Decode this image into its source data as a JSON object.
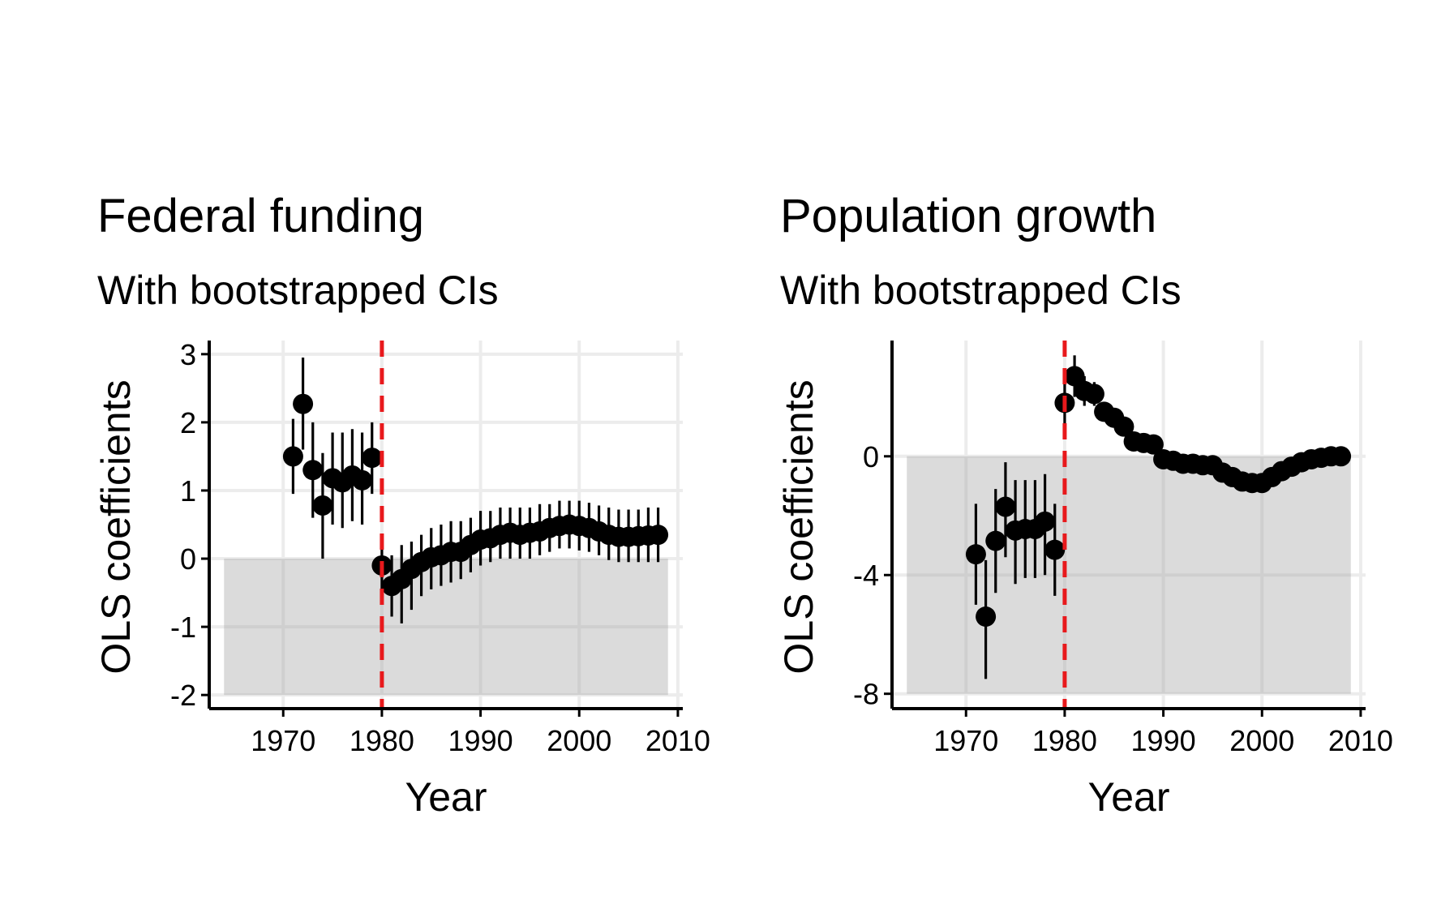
{
  "chart_data": [
    {
      "type": "scatter",
      "title": "Federal funding",
      "subtitle": "With bootstrapped CIs",
      "xlabel": "Year",
      "ylabel": "OLS coefficients",
      "xlim": [
        1962.5,
        2010.5
      ],
      "ylim": [
        -2.2,
        3.2
      ],
      "xticks": [
        "1970",
        "1980",
        "1990",
        "2000",
        "2010"
      ],
      "yticks": [
        "-2",
        "-1",
        "0",
        "1",
        "2",
        "3"
      ],
      "x_tick_values": [
        1970,
        1980,
        1990,
        2000,
        2010
      ],
      "y_tick_values": [
        -2,
        -1,
        0,
        1,
        2,
        3
      ],
      "shaded_region": {
        "x": [
          1964,
          2009
        ],
        "y": [
          -2,
          0
        ]
      },
      "vline": {
        "x": 1980,
        "color": "#e8191c",
        "style": "dashed"
      },
      "points": [
        {
          "x": 1971,
          "y": 1.5,
          "low": 0.95,
          "high": 2.05
        },
        {
          "x": 1972,
          "y": 2.27,
          "low": 1.6,
          "high": 2.95
        },
        {
          "x": 1973,
          "y": 1.3,
          "low": 0.6,
          "high": 2.0
        },
        {
          "x": 1974,
          "y": 0.78,
          "low": 0.0,
          "high": 1.55
        },
        {
          "x": 1975,
          "y": 1.18,
          "low": 0.5,
          "high": 1.85
        },
        {
          "x": 1976,
          "y": 1.12,
          "low": 0.45,
          "high": 1.85
        },
        {
          "x": 1977,
          "y": 1.22,
          "low": 0.55,
          "high": 1.9
        },
        {
          "x": 1978,
          "y": 1.15,
          "low": 0.5,
          "high": 1.85
        },
        {
          "x": 1979,
          "y": 1.48,
          "low": 0.95,
          "high": 2.0
        },
        {
          "x": 1980,
          "y": -0.1,
          "low": -0.55,
          "high": 0.35
        },
        {
          "x": 1981,
          "y": -0.4,
          "low": -0.85,
          "high": 0.05
        },
        {
          "x": 1982,
          "y": -0.3,
          "low": -0.95,
          "high": 0.2
        },
        {
          "x": 1983,
          "y": -0.15,
          "low": -0.75,
          "high": 0.25
        },
        {
          "x": 1984,
          "y": -0.05,
          "low": -0.55,
          "high": 0.35
        },
        {
          "x": 1985,
          "y": 0.02,
          "low": -0.45,
          "high": 0.45
        },
        {
          "x": 1986,
          "y": 0.05,
          "low": -0.4,
          "high": 0.5
        },
        {
          "x": 1987,
          "y": 0.1,
          "low": -0.35,
          "high": 0.55
        },
        {
          "x": 1988,
          "y": 0.1,
          "low": -0.3,
          "high": 0.55
        },
        {
          "x": 1989,
          "y": 0.2,
          "low": -0.2,
          "high": 0.6
        },
        {
          "x": 1990,
          "y": 0.28,
          "low": -0.1,
          "high": 0.7
        },
        {
          "x": 1991,
          "y": 0.3,
          "low": -0.05,
          "high": 0.7
        },
        {
          "x": 1992,
          "y": 0.35,
          "low": 0.0,
          "high": 0.75
        },
        {
          "x": 1993,
          "y": 0.38,
          "low": 0.0,
          "high": 0.75
        },
        {
          "x": 1994,
          "y": 0.35,
          "low": 0.0,
          "high": 0.75
        },
        {
          "x": 1995,
          "y": 0.38,
          "low": 0.0,
          "high": 0.75
        },
        {
          "x": 1996,
          "y": 0.4,
          "low": 0.05,
          "high": 0.8
        },
        {
          "x": 1997,
          "y": 0.45,
          "low": 0.1,
          "high": 0.8
        },
        {
          "x": 1998,
          "y": 0.48,
          "low": 0.15,
          "high": 0.85
        },
        {
          "x": 1999,
          "y": 0.5,
          "low": 0.15,
          "high": 0.85
        },
        {
          "x": 2000,
          "y": 0.48,
          "low": 0.12,
          "high": 0.85
        },
        {
          "x": 2001,
          "y": 0.45,
          "low": 0.1,
          "high": 0.82
        },
        {
          "x": 2002,
          "y": 0.4,
          "low": 0.05,
          "high": 0.78
        },
        {
          "x": 2003,
          "y": 0.35,
          "low": -0.02,
          "high": 0.75
        },
        {
          "x": 2004,
          "y": 0.32,
          "low": -0.05,
          "high": 0.72
        },
        {
          "x": 2005,
          "y": 0.32,
          "low": -0.05,
          "high": 0.72
        },
        {
          "x": 2006,
          "y": 0.33,
          "low": -0.05,
          "high": 0.72
        },
        {
          "x": 2007,
          "y": 0.34,
          "low": -0.05,
          "high": 0.75
        },
        {
          "x": 2008,
          "y": 0.35,
          "low": -0.05,
          "high": 0.75
        }
      ]
    },
    {
      "type": "scatter",
      "title": "Population growth",
      "subtitle": "With bootstrapped CIs",
      "xlabel": "Year",
      "ylabel": "OLS coefficients",
      "xlim": [
        1962.5,
        2010.5
      ],
      "ylim": [
        -8.5,
        3.9
      ],
      "xticks": [
        "1970",
        "1980",
        "1990",
        "2000",
        "2010"
      ],
      "yticks": [
        "-8",
        "-4",
        "0"
      ],
      "x_tick_values": [
        1970,
        1980,
        1990,
        2000,
        2010
      ],
      "y_tick_values": [
        -8,
        -4,
        0
      ],
      "shaded_region": {
        "x": [
          1964,
          2009
        ],
        "y": [
          -8,
          0
        ]
      },
      "vline": {
        "x": 1980,
        "color": "#e8191c",
        "style": "dashed"
      },
      "points": [
        {
          "x": 1971,
          "y": -3.3,
          "low": -5.0,
          "high": -1.6
        },
        {
          "x": 1972,
          "y": -5.4,
          "low": -7.5,
          "high": -3.5
        },
        {
          "x": 1973,
          "y": -2.85,
          "low": -4.6,
          "high": -1.1
        },
        {
          "x": 1974,
          "y": -1.7,
          "low": -3.4,
          "high": -0.2
        },
        {
          "x": 1975,
          "y": -2.5,
          "low": -4.3,
          "high": -0.8
        },
        {
          "x": 1976,
          "y": -2.45,
          "low": -4.1,
          "high": -0.8
        },
        {
          "x": 1977,
          "y": -2.45,
          "low": -4.1,
          "high": -0.8
        },
        {
          "x": 1978,
          "y": -2.2,
          "low": -4.0,
          "high": -0.6
        },
        {
          "x": 1979,
          "y": -3.15,
          "low": -4.7,
          "high": -1.6
        },
        {
          "x": 1980,
          "y": 1.8,
          "low": 1.0,
          "high": 2.6
        },
        {
          "x": 1981,
          "y": 2.7,
          "low": 2.0,
          "high": 3.4
        },
        {
          "x": 1982,
          "y": 2.2,
          "low": 1.7,
          "high": 2.7
        },
        {
          "x": 1983,
          "y": 2.1,
          "low": 1.7,
          "high": 2.5
        },
        {
          "x": 1984,
          "y": 1.5,
          "low": 1.2,
          "high": 1.8
        },
        {
          "x": 1985,
          "y": 1.3,
          "low": 1.0,
          "high": 1.6
        },
        {
          "x": 1986,
          "y": 1.0,
          "low": 0.7,
          "high": 1.3
        },
        {
          "x": 1987,
          "y": 0.5,
          "low": 0.2,
          "high": 0.8
        },
        {
          "x": 1988,
          "y": 0.45,
          "low": 0.2,
          "high": 0.7
        },
        {
          "x": 1989,
          "y": 0.4,
          "low": 0.15,
          "high": 0.65
        },
        {
          "x": 1990,
          "y": -0.1,
          "low": -0.35,
          "high": 0.15
        },
        {
          "x": 1991,
          "y": -0.15,
          "low": -0.4,
          "high": 0.1
        },
        {
          "x": 1992,
          "y": -0.25,
          "low": -0.5,
          "high": 0.0
        },
        {
          "x": 1993,
          "y": -0.25,
          "low": -0.5,
          "high": 0.0
        },
        {
          "x": 1994,
          "y": -0.3,
          "low": -0.55,
          "high": -0.05
        },
        {
          "x": 1995,
          "y": -0.3,
          "low": -0.55,
          "high": -0.05
        },
        {
          "x": 1996,
          "y": -0.55,
          "low": -0.8,
          "high": -0.3
        },
        {
          "x": 1997,
          "y": -0.7,
          "low": -0.95,
          "high": -0.45
        },
        {
          "x": 1998,
          "y": -0.85,
          "low": -1.1,
          "high": -0.6
        },
        {
          "x": 1999,
          "y": -0.9,
          "low": -1.15,
          "high": -0.65
        },
        {
          "x": 2000,
          "y": -0.9,
          "low": -1.15,
          "high": -0.65
        },
        {
          "x": 2001,
          "y": -0.7,
          "low": -0.95,
          "high": -0.45
        },
        {
          "x": 2002,
          "y": -0.5,
          "low": -0.75,
          "high": -0.25
        },
        {
          "x": 2003,
          "y": -0.35,
          "low": -0.6,
          "high": -0.1
        },
        {
          "x": 2004,
          "y": -0.2,
          "low": -0.45,
          "high": 0.05
        },
        {
          "x": 2005,
          "y": -0.1,
          "low": -0.35,
          "high": 0.15
        },
        {
          "x": 2006,
          "y": -0.05,
          "low": -0.3,
          "high": 0.2
        },
        {
          "x": 2007,
          "y": 0.0,
          "low": -0.25,
          "high": 0.25
        },
        {
          "x": 2008,
          "y": 0.0,
          "low": -0.25,
          "high": 0.25
        }
      ]
    }
  ]
}
